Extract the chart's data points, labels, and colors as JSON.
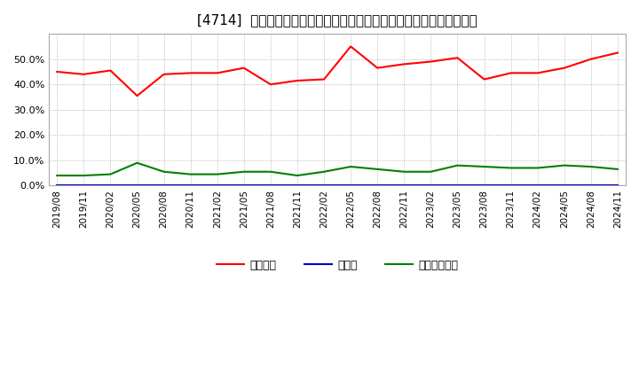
{
  "title": "[4714]  自己資本、のれん、繰延税金資産の総資産に対する比率の推移",
  "x_labels": [
    "2019/08",
    "2019/11",
    "2020/02",
    "2020/05",
    "2020/08",
    "2020/11",
    "2021/02",
    "2021/05",
    "2021/08",
    "2021/11",
    "2022/02",
    "2022/05",
    "2022/08",
    "2022/11",
    "2023/02",
    "2023/05",
    "2023/08",
    "2023/11",
    "2024/02",
    "2024/05",
    "2024/08",
    "2024/11"
  ],
  "equity": [
    45.0,
    44.0,
    45.5,
    35.5,
    44.0,
    44.5,
    44.5,
    46.5,
    40.0,
    41.5,
    42.0,
    55.0,
    46.5,
    48.0,
    49.0,
    50.5,
    42.0,
    44.5,
    44.5,
    46.5,
    50.0,
    52.5
  ],
  "noren": [
    0.3,
    0.3,
    0.3,
    0.3,
    0.3,
    0.3,
    0.3,
    0.3,
    0.3,
    0.3,
    0.3,
    0.3,
    0.3,
    0.3,
    0.3,
    0.3,
    0.3,
    0.3,
    0.3,
    0.3,
    0.3,
    0.3
  ],
  "deferred_tax": [
    4.0,
    4.0,
    4.5,
    9.0,
    5.5,
    4.5,
    4.5,
    5.5,
    5.5,
    4.0,
    5.5,
    7.5,
    6.5,
    5.5,
    5.5,
    8.0,
    7.5,
    7.0,
    7.0,
    8.0,
    7.5,
    6.5
  ],
  "equity_color": "#ff0000",
  "noren_color": "#0000cc",
  "deferred_tax_color": "#008000",
  "background_color": "#ffffff",
  "plot_bg_color": "#ffffff",
  "grid_color": "#999999",
  "legend_labels": [
    "自己資本",
    "のれん",
    "繰延税金資産"
  ],
  "ylim": [
    0.0,
    60.0
  ],
  "yticks": [
    0.0,
    10.0,
    20.0,
    30.0,
    40.0,
    50.0
  ],
  "title_fontsize": 11,
  "legend_fontsize": 9,
  "tick_fontsize": 7.5,
  "line_width": 1.5
}
